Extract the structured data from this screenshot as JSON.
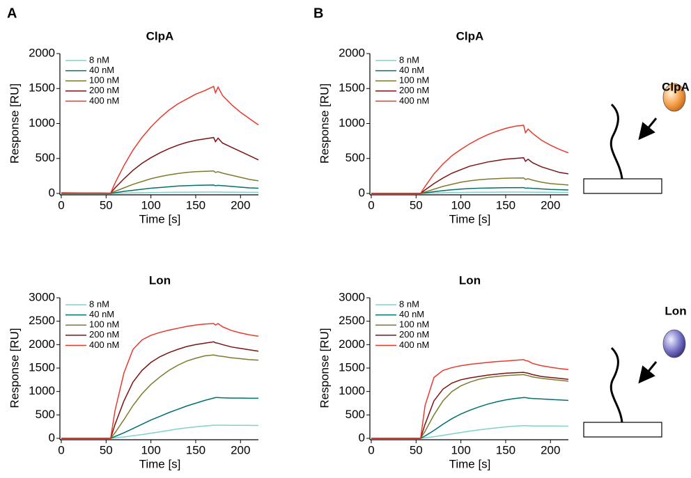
{
  "panels": [
    "A",
    "B"
  ],
  "schematics": [
    {
      "label": "ClpA"
    },
    {
      "label": "Lon"
    }
  ],
  "chart_data": [
    {
      "type": "line",
      "title": "ClpA",
      "x_label": "Time [s]",
      "y_label": "Response [RU]",
      "x": [
        0,
        20,
        40,
        55,
        60,
        70,
        80,
        90,
        100,
        110,
        120,
        130,
        140,
        150,
        160,
        170,
        172,
        175,
        180,
        190,
        200,
        210,
        220
      ],
      "xlim": [
        0,
        220
      ],
      "xticks": [
        0,
        50,
        100,
        150,
        200
      ],
      "ylim": [
        0,
        2000
      ],
      "yticks": [
        0,
        500,
        1000,
        1500,
        2000
      ],
      "legend": "upper left",
      "series": [
        {
          "name": "8 nM",
          "color": "#80d0cc",
          "values": [
            0,
            0,
            0,
            0,
            2,
            5,
            8,
            10,
            12,
            14,
            16,
            17,
            18,
            19,
            20,
            20,
            20,
            20,
            19,
            18,
            17,
            16,
            15
          ]
        },
        {
          "name": "40 nM",
          "color": "#00706c",
          "values": [
            0,
            0,
            0,
            0,
            10,
            30,
            45,
            60,
            75,
            85,
            95,
            105,
            110,
            115,
            118,
            120,
            110,
            115,
            110,
            100,
            90,
            80,
            75
          ]
        },
        {
          "name": "100 nM",
          "color": "#7d7a2c",
          "values": [
            3,
            3,
            3,
            2,
            30,
            80,
            130,
            170,
            210,
            240,
            265,
            285,
            300,
            310,
            315,
            320,
            300,
            310,
            290,
            260,
            230,
            200,
            180
          ]
        },
        {
          "name": "200 nM",
          "color": "#7c1212",
          "values": [
            5,
            5,
            5,
            3,
            80,
            210,
            330,
            430,
            510,
            580,
            640,
            690,
            730,
            760,
            780,
            800,
            740,
            790,
            720,
            660,
            600,
            540,
            480
          ]
        },
        {
          "name": "400 nM",
          "color": "#e8392c",
          "values": [
            10,
            8,
            8,
            5,
            150,
            400,
            620,
            800,
            950,
            1080,
            1190,
            1280,
            1350,
            1420,
            1470,
            1530,
            1440,
            1520,
            1400,
            1270,
            1160,
            1070,
            980
          ]
        }
      ]
    },
    {
      "type": "line",
      "title": "ClpA",
      "x_label": "Time [s]",
      "y_label": "Response [RU]",
      "x": [
        0,
        20,
        40,
        55,
        60,
        70,
        80,
        90,
        100,
        110,
        120,
        130,
        140,
        150,
        160,
        170,
        172,
        175,
        180,
        190,
        200,
        210,
        220
      ],
      "xlim": [
        0,
        220
      ],
      "xticks": [
        0,
        50,
        100,
        150,
        200
      ],
      "ylim": [
        0,
        2000
      ],
      "yticks": [
        0,
        500,
        1000,
        1500,
        2000
      ],
      "legend": "upper left",
      "series": [
        {
          "name": "8 nM",
          "color": "#80d0cc",
          "values": [
            0,
            0,
            0,
            0,
            2,
            6,
            10,
            12,
            14,
            16,
            17,
            18,
            19,
            20,
            20,
            20,
            19,
            19,
            18,
            17,
            16,
            15,
            15
          ]
        },
        {
          "name": "40 nM",
          "color": "#00706c",
          "values": [
            0,
            0,
            0,
            0,
            8,
            25,
            40,
            52,
            62,
            70,
            75,
            78,
            80,
            82,
            83,
            84,
            75,
            78,
            72,
            65,
            58,
            54,
            50
          ]
        },
        {
          "name": "100 nM",
          "color": "#7d7a2c",
          "values": [
            0,
            0,
            0,
            0,
            20,
            60,
            100,
            130,
            160,
            180,
            195,
            205,
            212,
            218,
            220,
            222,
            200,
            210,
            190,
            160,
            140,
            130,
            120
          ]
        },
        {
          "name": "200 nM",
          "color": "#7c1212",
          "values": [
            0,
            0,
            0,
            0,
            50,
            140,
            220,
            290,
            340,
            390,
            420,
            450,
            470,
            490,
            500,
            510,
            460,
            490,
            440,
            380,
            340,
            300,
            280
          ]
        },
        {
          "name": "400 nM",
          "color": "#e8392c",
          "values": [
            0,
            0,
            0,
            0,
            100,
            280,
            420,
            540,
            630,
            710,
            780,
            840,
            890,
            930,
            960,
            975,
            870,
            920,
            860,
            760,
            690,
            630,
            580
          ]
        }
      ]
    },
    {
      "type": "line",
      "title": "Lon",
      "x_label": "Time [s]",
      "y_label": "Response [RU]",
      "x": [
        0,
        20,
        40,
        55,
        60,
        70,
        80,
        90,
        100,
        110,
        120,
        130,
        140,
        150,
        160,
        170,
        172,
        175,
        180,
        190,
        200,
        210,
        220
      ],
      "xlim": [
        0,
        220
      ],
      "xticks": [
        0,
        50,
        100,
        150,
        200
      ],
      "ylim": [
        0,
        3000
      ],
      "yticks": [
        0,
        500,
        1000,
        1500,
        2000,
        2500,
        3000
      ],
      "legend": "upper left",
      "series": [
        {
          "name": "8 nM",
          "color": "#80d0cc",
          "values": [
            0,
            0,
            0,
            0,
            10,
            30,
            55,
            80,
            110,
            140,
            170,
            200,
            225,
            245,
            265,
            280,
            280,
            280,
            280,
            278,
            277,
            276,
            275
          ]
        },
        {
          "name": "40 nM",
          "color": "#00706c",
          "values": [
            0,
            0,
            0,
            0,
            40,
            120,
            210,
            300,
            390,
            470,
            550,
            620,
            690,
            750,
            810,
            860,
            870,
            870,
            865,
            860,
            860,
            855,
            855
          ]
        },
        {
          "name": "100 nM",
          "color": "#7d7a2c",
          "values": [
            0,
            0,
            0,
            0,
            120,
            400,
            700,
            950,
            1150,
            1310,
            1450,
            1560,
            1650,
            1710,
            1760,
            1780,
            1770,
            1760,
            1750,
            1720,
            1700,
            1680,
            1670
          ]
        },
        {
          "name": "200 nM",
          "color": "#7c1212",
          "values": [
            0,
            0,
            0,
            0,
            300,
            800,
            1200,
            1450,
            1620,
            1740,
            1830,
            1900,
            1960,
            2000,
            2030,
            2060,
            2040,
            2030,
            2000,
            1950,
            1920,
            1890,
            1860
          ]
        },
        {
          "name": "400 nM",
          "color": "#e8392c",
          "values": [
            0,
            0,
            0,
            0,
            600,
            1400,
            1900,
            2100,
            2200,
            2260,
            2310,
            2350,
            2390,
            2420,
            2440,
            2450,
            2420,
            2450,
            2380,
            2300,
            2250,
            2210,
            2180
          ]
        }
      ]
    },
    {
      "type": "line",
      "title": "Lon",
      "x_label": "Time [s]",
      "y_label": "Response [RU]",
      "x": [
        0,
        20,
        40,
        55,
        60,
        70,
        80,
        90,
        100,
        110,
        120,
        130,
        140,
        150,
        160,
        170,
        172,
        175,
        180,
        190,
        200,
        210,
        220
      ],
      "xlim": [
        0,
        220
      ],
      "xticks": [
        0,
        50,
        100,
        150,
        200
      ],
      "ylim": [
        0,
        3000
      ],
      "yticks": [
        0,
        500,
        1000,
        1500,
        2000,
        2500,
        3000
      ],
      "legend": "upper left",
      "series": [
        {
          "name": "8 nM",
          "color": "#80d0cc",
          "values": [
            0,
            0,
            0,
            0,
            10,
            35,
            65,
            95,
            125,
            155,
            180,
            205,
            225,
            245,
            260,
            270,
            270,
            268,
            265,
            265,
            265,
            262,
            260
          ]
        },
        {
          "name": "40 nM",
          "color": "#00706c",
          "values": [
            0,
            0,
            0,
            0,
            50,
            170,
            300,
            420,
            520,
            600,
            670,
            730,
            780,
            820,
            850,
            870,
            870,
            860,
            850,
            840,
            830,
            820,
            810
          ]
        },
        {
          "name": "100 nM",
          "color": "#7d7a2c",
          "values": [
            0,
            0,
            0,
            0,
            150,
            500,
            800,
            1000,
            1120,
            1200,
            1260,
            1300,
            1320,
            1340,
            1350,
            1360,
            1350,
            1340,
            1310,
            1280,
            1260,
            1240,
            1220
          ]
        },
        {
          "name": "200 nM",
          "color": "#7c1212",
          "values": [
            0,
            0,
            0,
            0,
            300,
            800,
            1050,
            1180,
            1250,
            1290,
            1320,
            1350,
            1370,
            1390,
            1400,
            1410,
            1400,
            1390,
            1360,
            1320,
            1300,
            1280,
            1260
          ]
        },
        {
          "name": "400 nM",
          "color": "#e8392c",
          "values": [
            0,
            0,
            0,
            0,
            700,
            1300,
            1450,
            1510,
            1550,
            1580,
            1600,
            1620,
            1640,
            1650,
            1665,
            1680,
            1660,
            1650,
            1600,
            1550,
            1520,
            1490,
            1470
          ]
        }
      ]
    }
  ]
}
